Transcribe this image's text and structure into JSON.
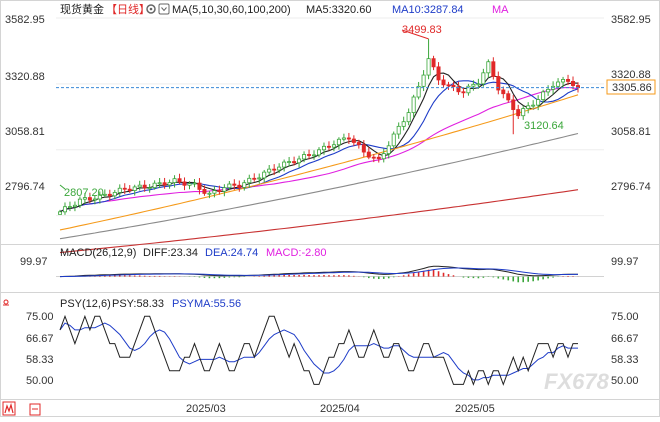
{
  "colors": {
    "up": "#3aa63a",
    "down": "#e02828",
    "ma5": "#222222",
    "ma10": "#1e3cc8",
    "ma30": "#e020e0",
    "ma60": "#f59a1a",
    "ma100": "#8a8a8a",
    "ma200": "#c83232",
    "diff": "#222222",
    "dea": "#1e3cc8",
    "psy": "#222222",
    "psyma": "#1e3cc8",
    "current_line": "#3a8ad8",
    "current_box": "#f59a1a"
  },
  "header": {
    "instrument": "现货黄金",
    "period": "【日线】",
    "ma_params": "MA(5,10,30,60,100,200)",
    "ma5": "MA5:3320.60",
    "ma10": "MA10:3287.84",
    "ma30": "MA"
  },
  "macd_header": {
    "params": "MACD(26,12,9)",
    "diff": "DIFF:23.34",
    "dea": "DEA:24.74",
    "macd": "MACD:-2.80"
  },
  "psy_header": {
    "params": "PSY(12,6)",
    "psy": "PSY:58.33",
    "psyma": "PSYMA:55.56"
  },
  "price_axis": {
    "labels": [
      "3582.95",
      "3320.88",
      "3058.81",
      "2796.74"
    ],
    "current_label": "3305.86",
    "current_value": 3305.86
  },
  "macd_axis": {
    "label": "99.97"
  },
  "psy_axis": {
    "labels": [
      "75.00",
      "66.67",
      "58.33",
      "50.00"
    ]
  },
  "x_axis": {
    "labels": [
      "2025/03",
      "2025/04",
      "2025/05"
    ]
  },
  "annotations": {
    "high": "3499.83",
    "low_recent": "3120.64",
    "low_left": "2807.20"
  },
  "watermark": "FX678",
  "chart_data": [
    {
      "type": "candlestick",
      "ylim": [
        2700,
        3582.95
      ],
      "series_legend": [
        "MA5",
        "MA10",
        "MA30",
        "MA60",
        "MA100",
        "MA200"
      ],
      "ma_last": {
        "MA5": 3320.6,
        "MA10": 3287.84
      },
      "annotated_points": {
        "high": 3499.83,
        "low": 3120.64,
        "low_left": 2807.2
      },
      "anchors_close": [
        [
          0,
          2812
        ],
        [
          4,
          2858
        ],
        [
          8,
          2872
        ],
        [
          13,
          2903
        ],
        [
          18,
          2915
        ],
        [
          23,
          2935
        ],
        [
          27,
          2918
        ],
        [
          30,
          2880
        ],
        [
          33,
          2912
        ],
        [
          36,
          2918
        ],
        [
          40,
          2955
        ],
        [
          44,
          2995
        ],
        [
          48,
          3023
        ],
        [
          52,
          3055
        ],
        [
          55,
          3085
        ],
        [
          58,
          3110
        ],
        [
          61,
          3050
        ],
        [
          64,
          3015
        ],
        [
          67,
          3115
        ],
        [
          70,
          3210
        ],
        [
          72,
          3310
        ],
        [
          74,
          3420
        ],
        [
          76,
          3340
        ],
        [
          78,
          3310
        ],
        [
          81,
          3290
        ],
        [
          84,
          3330
        ],
        [
          86,
          3400
        ],
        [
          88,
          3305
        ],
        [
          90,
          3250
        ],
        [
          92,
          3200
        ],
        [
          94,
          3230
        ],
        [
          96,
          3260
        ],
        [
          99,
          3320
        ],
        [
          102,
          3336
        ],
        [
          104,
          3305.86
        ]
      ]
    },
    {
      "type": "macd",
      "ylim": [
        -120,
        130
      ],
      "last": {
        "DIFF": 23.34,
        "DEA": 24.74,
        "MACD": -2.8
      }
    },
    {
      "type": "psy",
      "ylim": [
        25,
        85
      ],
      "last": {
        "PSY": 58.33,
        "PSYMA": 55.56
      },
      "psy_values": [
        66.67,
        75.0,
        66.67,
        58.33,
        66.67,
        75.0,
        66.67,
        75.0,
        75.0,
        66.67,
        58.33,
        58.33,
        50.0,
        50.0,
        50.0,
        58.33,
        66.67,
        75.0,
        75.0,
        66.67,
        58.33,
        50.0,
        41.67,
        41.67,
        41.67,
        50.0,
        50.0,
        58.33,
        50.0,
        41.67,
        41.67,
        50.0,
        58.33,
        50.0,
        41.67,
        41.67,
        50.0,
        58.33,
        58.33,
        50.0,
        58.33,
        66.67,
        75.0,
        75.0,
        66.67,
        58.33,
        50.0,
        58.33,
        50.0,
        41.67,
        41.67,
        33.33,
        33.33,
        41.67,
        50.0,
        50.0,
        58.33,
        58.33,
        66.67,
        58.33,
        50.0,
        50.0,
        58.33,
        66.67,
        58.33,
        50.0,
        50.0,
        58.33,
        58.33,
        50.0,
        41.67,
        41.67,
        50.0,
        58.33,
        58.33,
        50.0,
        50.0,
        50.0,
        41.67,
        33.33,
        33.33,
        33.33,
        41.67,
        33.33,
        41.67,
        41.67,
        33.33,
        41.67,
        41.67,
        33.33,
        41.67,
        50.0,
        41.67,
        50.0,
        41.67,
        50.0,
        58.33,
        58.33,
        58.33,
        50.0,
        58.33,
        58.33,
        50.0,
        58.33,
        58.33
      ]
    }
  ]
}
